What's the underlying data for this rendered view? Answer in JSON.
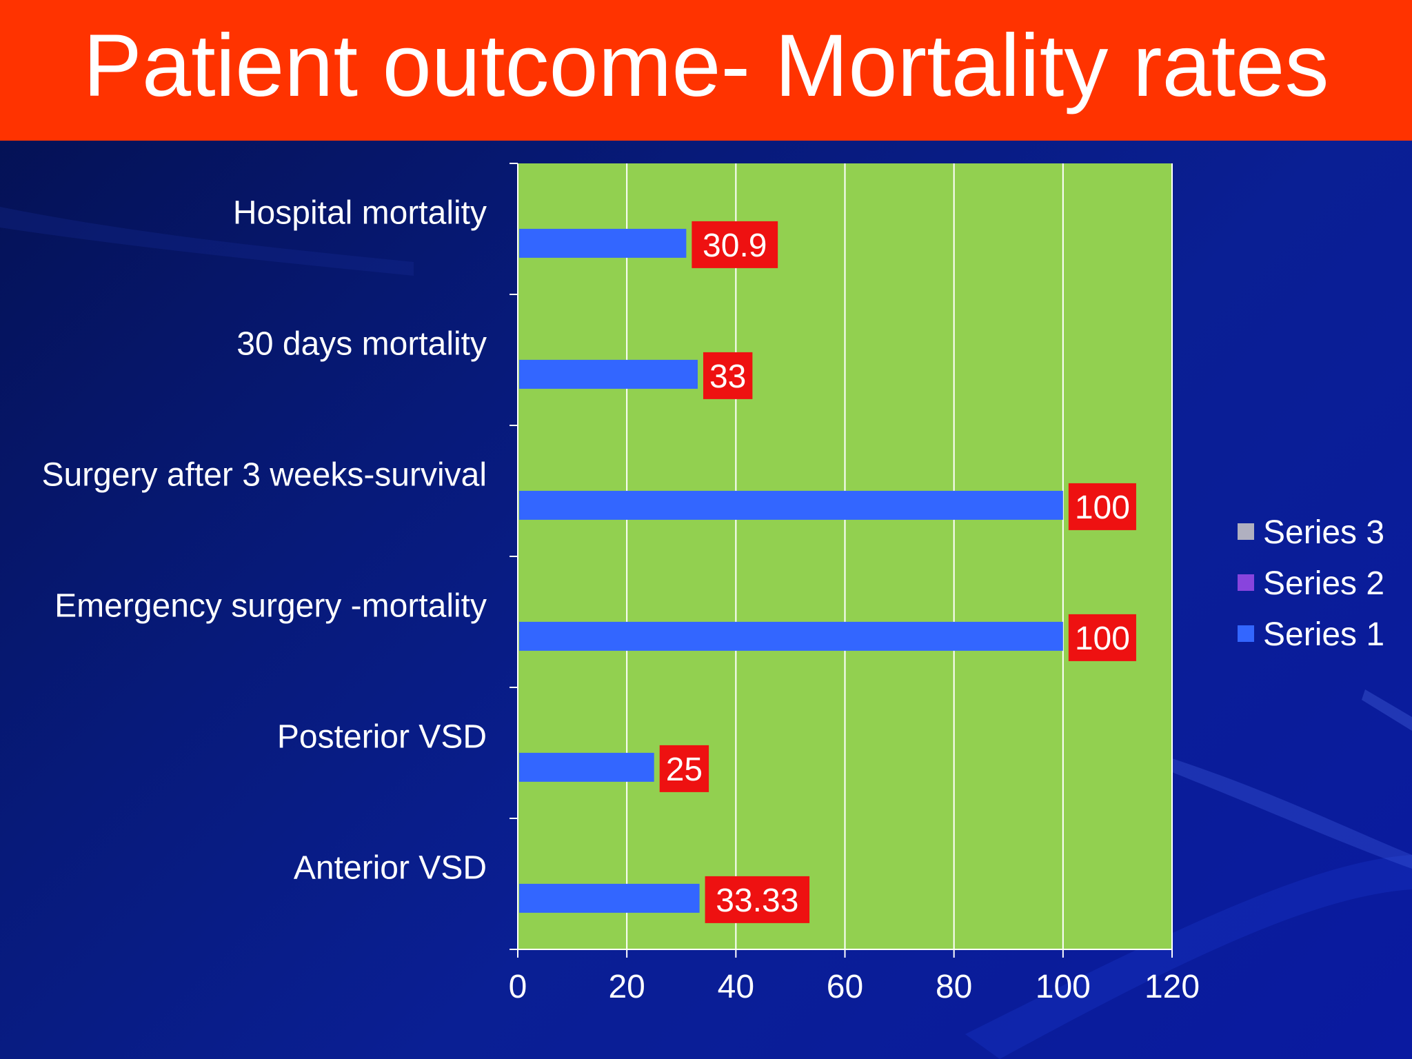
{
  "slide": {
    "title": "Patient outcome- Mortality rates"
  },
  "colors": {
    "title_bar": "#ff3300",
    "plot_area": "#92d050",
    "bar": "#3366ff",
    "data_label_bg": "#ee1111",
    "series_2": "#8844dd",
    "series_3": "#b0b0c0",
    "text": "#ffffff"
  },
  "chart_data": {
    "type": "bar",
    "orientation": "horizontal",
    "categories": [
      "Hospital mortality",
      "30 days mortality",
      "Surgery after 3 weeks-survival",
      "Emergency surgery -mortality",
      "Posterior VSD",
      "Anterior VSD"
    ],
    "series": [
      {
        "name": "Series 1",
        "values": [
          30.9,
          33,
          100,
          100,
          25,
          33.33
        ],
        "data_labels": [
          "30.9",
          "33",
          "100",
          "100",
          "25",
          "33.33"
        ]
      }
    ],
    "xlim": [
      0,
      120
    ],
    "x_ticks": [
      "0",
      "20",
      "40",
      "60",
      "80",
      "100",
      "120"
    ],
    "x_tick_values": [
      0,
      20,
      40,
      60,
      80,
      100,
      120
    ],
    "gridlines": true,
    "legend": {
      "position": "right",
      "entries": [
        "Series 3",
        "Series 2",
        "Series 1"
      ]
    }
  }
}
